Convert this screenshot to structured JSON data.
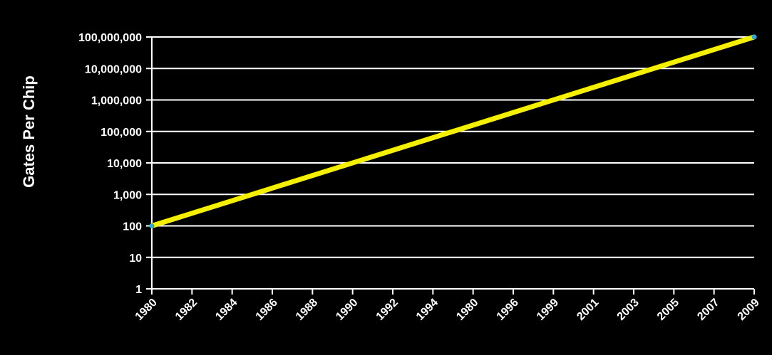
{
  "chart_data": {
    "type": "line",
    "title": "",
    "xlabel": "",
    "ylabel": "Gates Per Chip",
    "x_tick_labels": [
      "1980",
      "1982",
      "1984",
      "1986",
      "1988",
      "1990",
      "1992",
      "1994",
      "1980",
      "1996",
      "1999",
      "2001",
      "2003",
      "2005",
      "2007",
      "2009"
    ],
    "y_tick_labels": [
      "1",
      "10",
      "100",
      "1,000",
      "10,000",
      "100,000",
      "1,000,000",
      "10,000,000",
      "100,000,000"
    ],
    "y_scale": "log",
    "ylim": [
      1,
      100000000
    ],
    "grid": true,
    "series": [
      {
        "x": [
          "1980",
          "2009"
        ],
        "values": [
          100,
          100000000
        ]
      }
    ],
    "colors": {
      "background": "#000000",
      "grid": "#ffffff",
      "axis": "#ffffff",
      "line": "#f5f000",
      "endpoint": "#2aa8d8",
      "text": "#ffffff"
    }
  }
}
